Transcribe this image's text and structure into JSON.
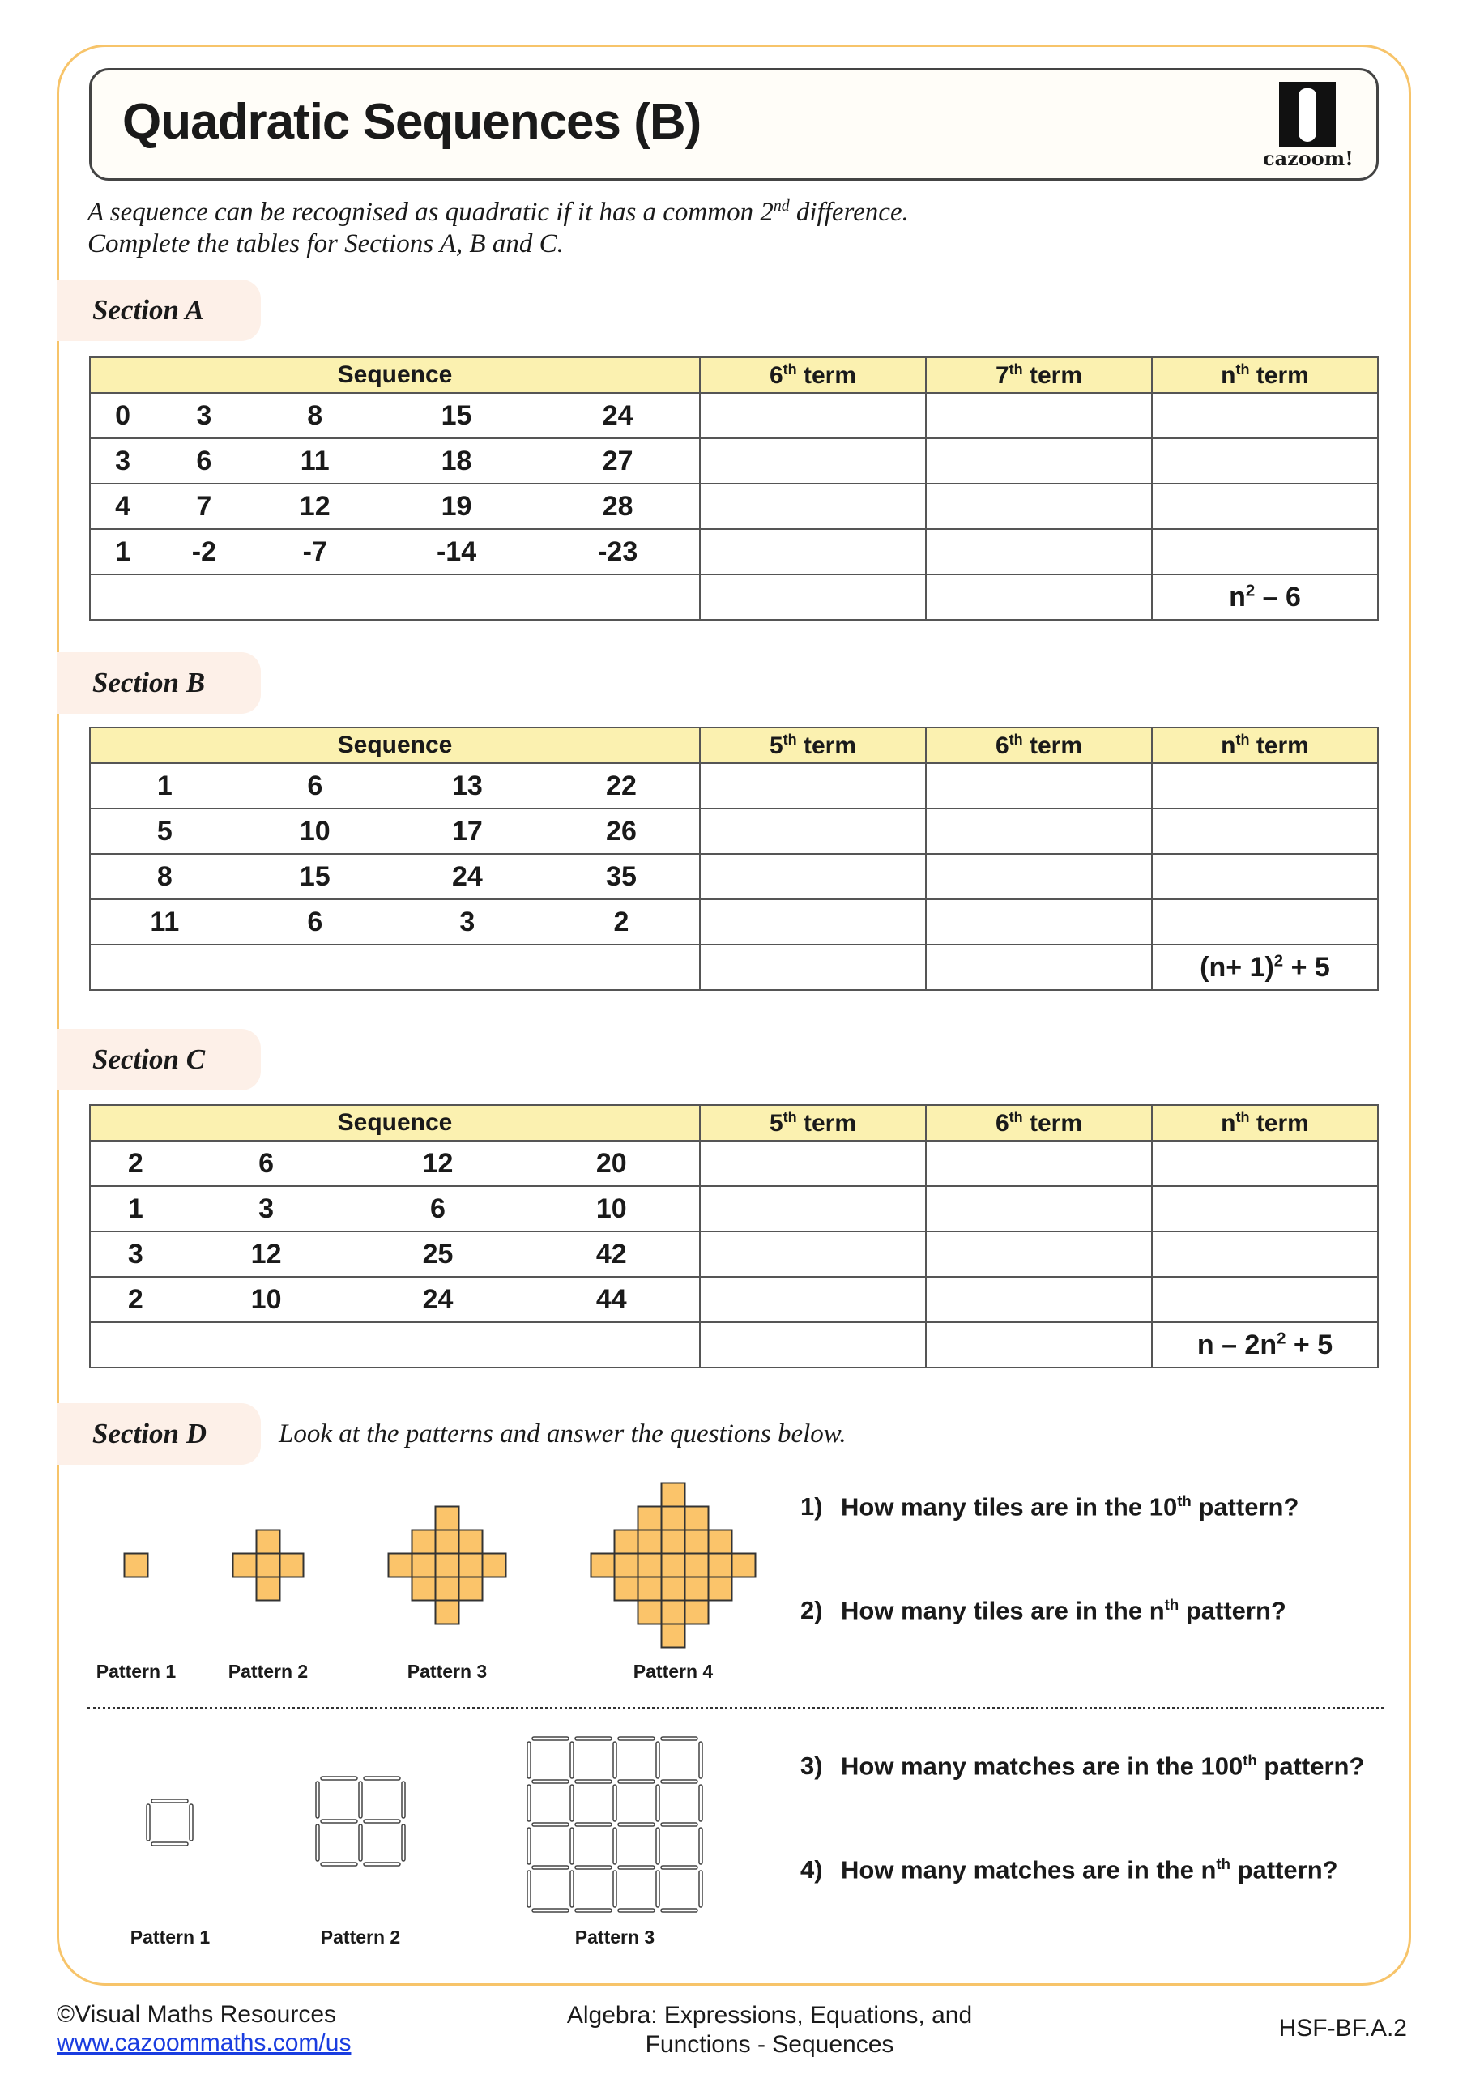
{
  "title": "Quadratic Sequences (B)",
  "logo": "cazoom!",
  "intro": {
    "line1_a": "A sequence can be recognised as quadratic if it has a common 2",
    "line1_sup": "nd",
    "line1_b": " difference.",
    "line2": "Complete the tables for Sections A, B and C."
  },
  "sections": [
    {
      "label": "Section A",
      "headers": [
        {
          "t": "Sequence"
        },
        {
          "t": "6",
          "s": "th",
          "r": " term"
        },
        {
          "t": "7",
          "s": "th",
          "r": " term"
        },
        {
          "t": "n",
          "s": "th",
          "r": " term"
        }
      ],
      "rows": [
        [
          "0",
          "3",
          "8",
          "15",
          "24"
        ],
        [
          "3",
          "6",
          "11",
          "18",
          "27"
        ],
        [
          "4",
          "7",
          "12",
          "19",
          "28"
        ],
        [
          "1",
          "-2",
          "-7",
          "-14",
          "-23"
        ]
      ],
      "given_nth": {
        "a": "n",
        "s": "2",
        "b": " – 6"
      }
    },
    {
      "label": "Section B",
      "headers": [
        {
          "t": "Sequence"
        },
        {
          "t": "5",
          "s": "th",
          "r": " term"
        },
        {
          "t": "6",
          "s": "th",
          "r": " term"
        },
        {
          "t": "n",
          "s": "th",
          "r": " term"
        }
      ],
      "rows": [
        [
          "1",
          "6",
          "13",
          "22"
        ],
        [
          "5",
          "10",
          "17",
          "26"
        ],
        [
          "8",
          "15",
          "24",
          "35"
        ],
        [
          "11",
          "6",
          "3",
          "2"
        ]
      ],
      "given_nth": {
        "a": "(n+ 1)",
        "s": "2",
        "b": " + 5"
      }
    },
    {
      "label": "Section C",
      "headers": [
        {
          "t": "Sequence"
        },
        {
          "t": "5",
          "s": "th",
          "r": " term"
        },
        {
          "t": "6",
          "s": "th",
          "r": " term"
        },
        {
          "t": "n",
          "s": "th",
          "r": " term"
        }
      ],
      "rows": [
        [
          "2",
          "6",
          "12",
          "20"
        ],
        [
          "1",
          "3",
          "6",
          "10"
        ],
        [
          "3",
          "12",
          "25",
          "42"
        ],
        [
          "2",
          "10",
          "24",
          "44"
        ]
      ],
      "given_nth": {
        "a": "n – 2n",
        "s": "2",
        "b": " + 5"
      }
    }
  ],
  "section_d": {
    "label": "Section D",
    "instruction": "Look at the patterns and answer the questions below.",
    "tile_patterns": [
      "Pattern 1",
      "Pattern 2",
      "Pattern 3",
      "Pattern 4"
    ],
    "match_patterns": [
      "Pattern 1",
      "Pattern 2",
      "Pattern 3"
    ],
    "questions": [
      {
        "n": "1)",
        "a": "How many tiles are in the 10",
        "s": "th",
        "b": " pattern?"
      },
      {
        "n": "2)",
        "a": "How many tiles are in the n",
        "s": "th",
        "b": " pattern?"
      },
      {
        "n": "3)",
        "a": "How many matches are in the 100",
        "s": "th",
        "b": " pattern?"
      },
      {
        "n": "4)",
        "a": "How many matches are in the n",
        "s": "th",
        "b": " pattern?"
      }
    ]
  },
  "colors": {
    "frame": "#f7c46a",
    "tile": "#fbc46a",
    "header": "#fbf1b0",
    "tab": "#fdf0e8"
  },
  "footer": {
    "copyright": "©Visual Maths Resources",
    "link": "www.cazoommaths.com/us",
    "topic_line1": "Algebra: Expressions, Equations, and",
    "topic_line2": "Functions - Sequences",
    "code": "HSF-BF.A.2"
  }
}
